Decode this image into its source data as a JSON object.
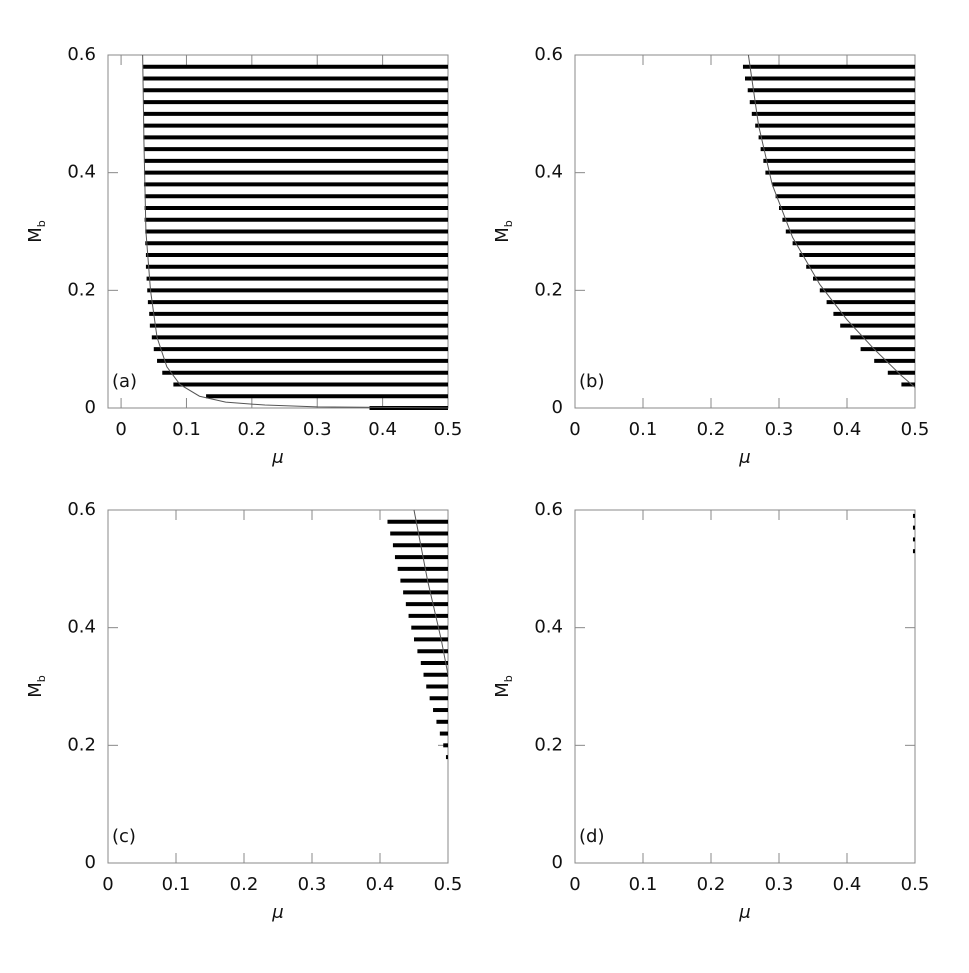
{
  "chart_data": [
    {
      "type": "range",
      "label": "(a)",
      "xlabel": "μ",
      "ylabel": "M",
      "ylabel_sub": "b",
      "xlim": [
        -0.02,
        0.5
      ],
      "ylim": [
        0,
        0.6
      ],
      "xticks": [
        0,
        0.1,
        0.2,
        0.3,
        0.4,
        0.5
      ],
      "yticks": [
        0,
        0.2,
        0.4,
        0.6
      ],
      "x_end": 0.5,
      "y": [
        0,
        0.02,
        0.04,
        0.06,
        0.08,
        0.1,
        0.12,
        0.14,
        0.16,
        0.18,
        0.2,
        0.22,
        0.24,
        0.26,
        0.28,
        0.3,
        0.32,
        0.34,
        0.36,
        0.38,
        0.4,
        0.42,
        0.44,
        0.46,
        0.48,
        0.5,
        0.52,
        0.54,
        0.56,
        0.58
      ],
      "x_start": [
        0.38,
        0.13,
        0.08,
        0.063,
        0.055,
        0.05,
        0.047,
        0.044,
        0.043,
        0.041,
        0.04,
        0.039,
        0.038,
        0.038,
        0.037,
        0.037,
        0.036,
        0.036,
        0.036,
        0.035,
        0.035,
        0.035,
        0.035,
        0.034,
        0.034,
        0.034,
        0.034,
        0.034,
        0.034,
        0.033
      ],
      "curve": {
        "x": [
          0.033,
          0.035,
          0.038,
          0.045,
          0.055,
          0.07,
          0.09,
          0.12,
          0.16,
          0.22,
          0.3,
          0.4,
          0.5
        ],
        "y": [
          0.6,
          0.45,
          0.3,
          0.2,
          0.12,
          0.07,
          0.04,
          0.02,
          0.01,
          0.005,
          0.002,
          0.001,
          0
        ]
      }
    },
    {
      "type": "range",
      "label": "(b)",
      "xlabel": "μ",
      "ylabel": "M",
      "ylabel_sub": "b",
      "xlim": [
        0,
        0.5
      ],
      "ylim": [
        0,
        0.6
      ],
      "xticks": [
        0,
        0.1,
        0.2,
        0.3,
        0.4,
        0.5
      ],
      "yticks": [
        0,
        0.2,
        0.4,
        0.6
      ],
      "x_end": 0.5,
      "y": [
        0.02,
        0.04,
        0.06,
        0.08,
        0.1,
        0.12,
        0.14,
        0.16,
        0.18,
        0.2,
        0.22,
        0.24,
        0.26,
        0.28,
        0.3,
        0.32,
        0.34,
        0.36,
        0.38,
        0.4,
        0.42,
        0.44,
        0.46,
        0.48,
        0.5,
        0.52,
        0.54,
        0.56,
        0.58
      ],
      "x_start": [
        0.5,
        0.48,
        0.46,
        0.44,
        0.42,
        0.405,
        0.39,
        0.38,
        0.37,
        0.36,
        0.35,
        0.34,
        0.33,
        0.32,
        0.31,
        0.305,
        0.3,
        0.295,
        0.29,
        0.28,
        0.277,
        0.273,
        0.27,
        0.265,
        0.26,
        0.257,
        0.254,
        0.25,
        0.247
      ],
      "curve": {
        "x": [
          0.255,
          0.27,
          0.29,
          0.32,
          0.36,
          0.4,
          0.44,
          0.48,
          0.5
        ],
        "y": [
          0.6,
          0.48,
          0.38,
          0.29,
          0.21,
          0.15,
          0.1,
          0.055,
          0.035
        ]
      }
    },
    {
      "type": "range",
      "label": "(c)",
      "xlabel": "μ",
      "ylabel": "M",
      "ylabel_sub": "b",
      "xlim": [
        0,
        0.5
      ],
      "ylim": [
        0,
        0.6
      ],
      "xticks": [
        0,
        0.1,
        0.2,
        0.3,
        0.4,
        0.5
      ],
      "yticks": [
        0,
        0.2,
        0.4,
        0.6
      ],
      "x_end": 0.5,
      "y": [
        0.16,
        0.18,
        0.2,
        0.22,
        0.24,
        0.26,
        0.28,
        0.3,
        0.32,
        0.34,
        0.36,
        0.38,
        0.4,
        0.42,
        0.44,
        0.46,
        0.48,
        0.5,
        0.52,
        0.54,
        0.56,
        0.58
      ],
      "x_start": [
        0.5,
        0.497,
        0.493,
        0.488,
        0.483,
        0.478,
        0.473,
        0.468,
        0.464,
        0.46,
        0.455,
        0.45,
        0.446,
        0.442,
        0.438,
        0.434,
        0.43,
        0.426,
        0.422,
        0.419,
        0.415,
        0.411
      ],
      "curve": {
        "x": [
          0.45,
          0.47,
          0.49,
          0.5
        ],
        "y": [
          0.6,
          0.48,
          0.38,
          0.32
        ]
      }
    },
    {
      "type": "range",
      "label": "(d)",
      "xlabel": "μ",
      "ylabel": "M",
      "ylabel_sub": "b",
      "xlim": [
        0,
        0.5
      ],
      "ylim": [
        0,
        0.6
      ],
      "xticks": [
        0,
        0.1,
        0.2,
        0.3,
        0.4,
        0.5
      ],
      "yticks": [
        0,
        0.2,
        0.4,
        0.6
      ],
      "x_end": 0.5,
      "y": [
        0.53,
        0.55,
        0.57,
        0.59
      ],
      "x_start": [
        0.497,
        0.497,
        0.497,
        0.497
      ]
    }
  ]
}
